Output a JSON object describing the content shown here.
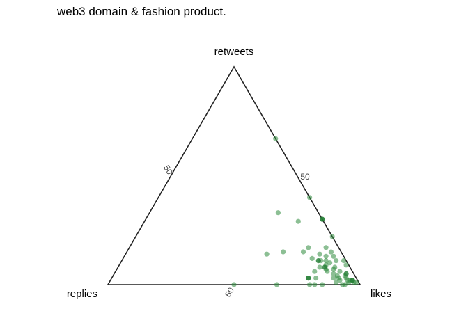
{
  "chart_data": {
    "type": "scatter",
    "subtype": "ternary",
    "title": "web3 domain & fashion product.",
    "axes": {
      "top": "retweets",
      "left": "replies",
      "right": "likes"
    },
    "tick_labels": {
      "replies": "50",
      "retweets": "50",
      "likes": "50"
    },
    "point_color": "#2e8b3c",
    "point_color_dense": "#1e7a2f",
    "line_color": "#222222",
    "units": "percent (likes, retweets, replies)",
    "points": [
      [
        78,
        22,
        0
      ],
      [
        70,
        30,
        0
      ],
      [
        60,
        40,
        0
      ],
      [
        33,
        67,
        0
      ],
      [
        51,
        33,
        16
      ],
      [
        61,
        29,
        10
      ],
      [
        56,
        14,
        30
      ],
      [
        62,
        15,
        23
      ],
      [
        70,
        15,
        15
      ],
      [
        71,
        17,
        12
      ],
      [
        75,
        12,
        13
      ],
      [
        77,
        14,
        9
      ],
      [
        80,
        13,
        7
      ],
      [
        78,
        17,
        5
      ],
      [
        81,
        15,
        4
      ],
      [
        83,
        10,
        7
      ],
      [
        83,
        13,
        4
      ],
      [
        85,
        11,
        4
      ],
      [
        86,
        8,
        6
      ],
      [
        83,
        7,
        10
      ],
      [
        84,
        6,
        10
      ],
      [
        86,
        7,
        7
      ],
      [
        87,
        5,
        8
      ],
      [
        89,
        6,
        5
      ],
      [
        89,
        4,
        7
      ],
      [
        88,
        3,
        9
      ],
      [
        90,
        3,
        7
      ],
      [
        91,
        2,
        7
      ],
      [
        90,
        1,
        9
      ],
      [
        92,
        4,
        4
      ],
      [
        94,
        2,
        4
      ],
      [
        93,
        3,
        4
      ],
      [
        95,
        1,
        4
      ],
      [
        96,
        2,
        2
      ],
      [
        97,
        1,
        2
      ],
      [
        98,
        1,
        1
      ],
      [
        80,
        8,
        12
      ],
      [
        79,
        11,
        10
      ],
      [
        81,
        11,
        8
      ],
      [
        82,
        9,
        9
      ],
      [
        79,
        6,
        15
      ],
      [
        78,
        3,
        19
      ],
      [
        81,
        3,
        16
      ],
      [
        80,
        0,
        20
      ],
      [
        82,
        0,
        18
      ],
      [
        85,
        0,
        15
      ],
      [
        93,
        0,
        7
      ],
      [
        95,
        2,
        3
      ],
      [
        94,
        0,
        6
      ],
      [
        67,
        0,
        33
      ],
      [
        50,
        0,
        50
      ],
      [
        90,
        9,
        1
      ],
      [
        88,
        11,
        1
      ]
    ],
    "dense_points": [
      [
        78,
        11,
        11
      ],
      [
        70,
        30,
        0
      ],
      [
        82,
        8,
        10
      ],
      [
        92,
        5,
        3
      ],
      [
        78,
        3,
        19
      ],
      [
        96,
        2,
        2
      ]
    ]
  }
}
